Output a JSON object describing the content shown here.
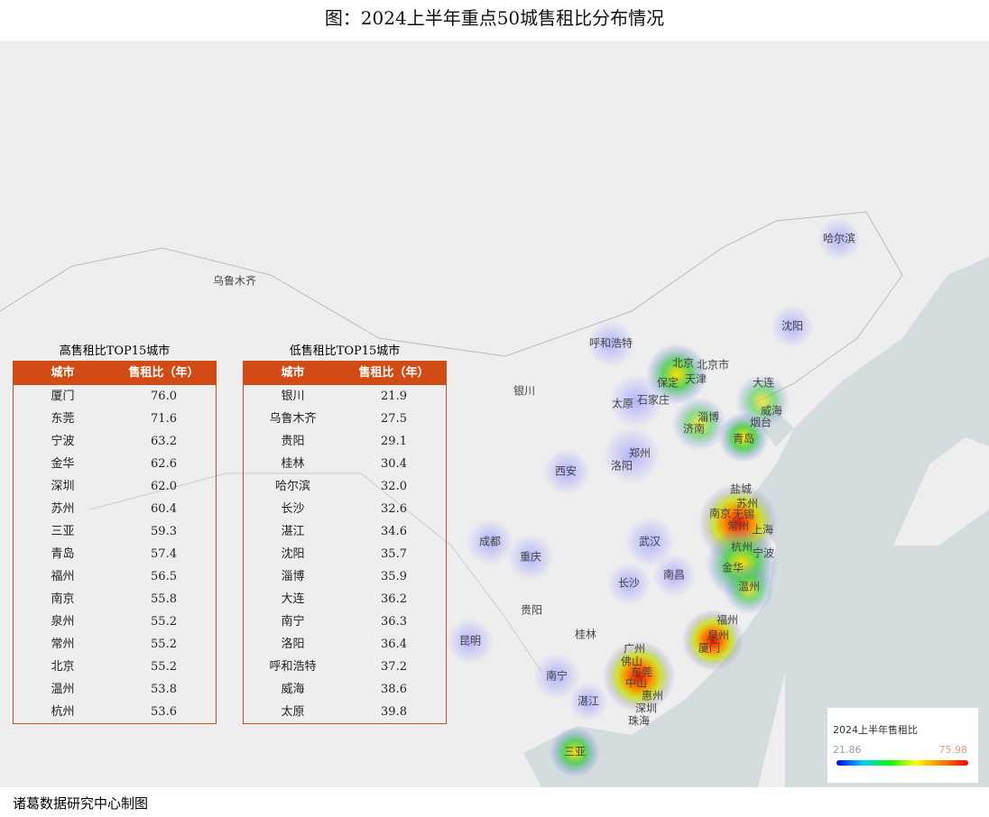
{
  "title": "图：2024上半年重点50城售租比分布情况",
  "tables": [
    {
      "title": "高售租比TOP15城市",
      "header": [
        "城市",
        "售租比（年）"
      ],
      "rows": [
        [
          "厦门",
          "76.0"
        ],
        [
          "东莞",
          "71.6"
        ],
        [
          "宁波",
          "63.2"
        ],
        [
          "金华",
          "62.6"
        ],
        [
          "深圳",
          "62.0"
        ],
        [
          "苏州",
          "60.4"
        ],
        [
          "三亚",
          "59.3"
        ],
        [
          "青岛",
          "57.4"
        ],
        [
          "福州",
          "56.5"
        ],
        [
          "南京",
          "55.8"
        ],
        [
          "泉州",
          "55.2"
        ],
        [
          "常州",
          "55.2"
        ],
        [
          "北京",
          "55.2"
        ],
        [
          "温州",
          "53.8"
        ],
        [
          "杭州",
          "53.6"
        ]
      ]
    },
    {
      "title": "低售租比TOP15城市",
      "header": [
        "城市",
        "售租比（年）"
      ],
      "rows": [
        [
          "银川",
          "21.9"
        ],
        [
          "乌鲁木齐",
          "27.5"
        ],
        [
          "贵阳",
          "29.1"
        ],
        [
          "桂林",
          "30.4"
        ],
        [
          "哈尔滨",
          "32.0"
        ],
        [
          "长沙",
          "32.6"
        ],
        [
          "湛江",
          "34.6"
        ],
        [
          "沈阳",
          "35.7"
        ],
        [
          "淄博",
          "35.9"
        ],
        [
          "大连",
          "36.2"
        ],
        [
          "南宁",
          "36.3"
        ],
        [
          "洛阳",
          "36.4"
        ],
        [
          "呼和浩特",
          "37.2"
        ],
        [
          "威海",
          "38.6"
        ],
        [
          "太原",
          "39.8"
        ]
      ]
    }
  ],
  "map": {
    "cities": [
      "哈尔滨",
      "乌鲁木齐",
      "沈阳",
      "呼和浩特",
      "北京",
      "北京市",
      "天津",
      "保定",
      "大连",
      "银川",
      "太原",
      "石家庄",
      "威海",
      "淄博",
      "烟台",
      "济南",
      "青岛",
      "郑州",
      "洛阳",
      "西安",
      "盐城",
      "苏州",
      "南京",
      "无锡",
      "常州",
      "上海",
      "成都",
      "武汉",
      "杭州",
      "宁波",
      "重庆",
      "金华",
      "南昌",
      "长沙",
      "温州",
      "贵阳",
      "福州",
      "桂林",
      "泉州",
      "昆明",
      "厦门",
      "广州",
      "佛山",
      "东莞",
      "南宁",
      "中山",
      "惠州",
      "湛江",
      "深圳",
      "珠海",
      "三亚"
    ]
  },
  "legend": {
    "title": "2024上半年售租比",
    "min": 21.86,
    "max": 75.98
  },
  "source": "诸葛数据研究中心制图"
}
